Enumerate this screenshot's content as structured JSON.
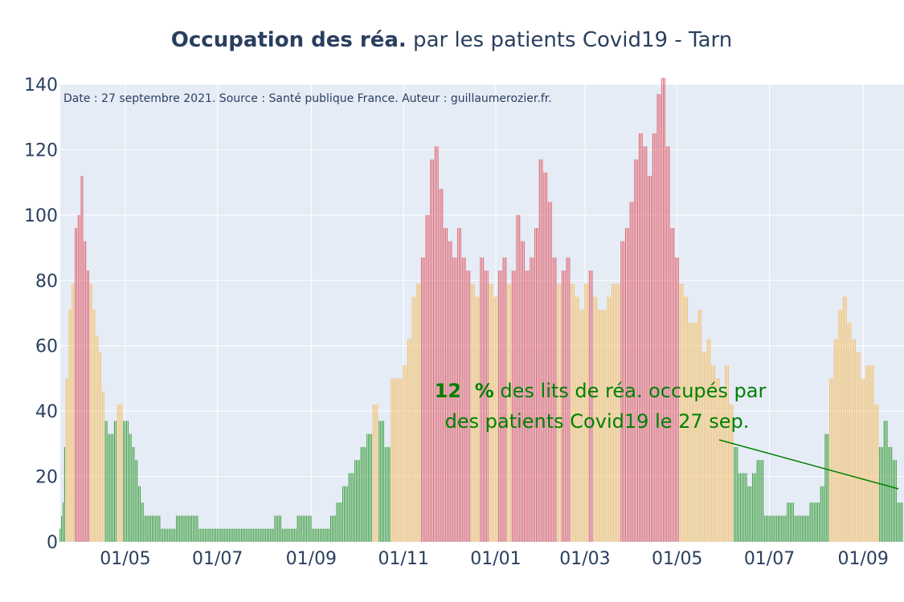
{
  "title": {
    "bold": "Occupation des réa.",
    "rest": " par les patients Covid19 - Tarn"
  },
  "source_note": "Date : 27 septembre 2021. Source : Santé publique France. Auteur : guillaumerozier.fr.",
  "annotation": {
    "percent": "12  %",
    "line1_rest": " des lits de réa. occupés par",
    "line2": "des patients Covid19 le 27 sep."
  },
  "colors": {
    "plot_bg": "#e5ecf6",
    "grid": "#ffffff",
    "text": "#2a3f5f",
    "green": "#3a9d3a",
    "orange": "#f5c16a",
    "red": "#e0606a",
    "annotation": "#008000"
  },
  "chart_data": {
    "type": "bar",
    "title": "Occupation des réa. par les patients Covid19 - Tarn",
    "xlabel": "",
    "ylabel": "",
    "ylim": [
      0,
      140
    ],
    "yticks": [
      "0",
      "20",
      "40",
      "60",
      "80",
      "100",
      "120",
      "140"
    ],
    "xticks": [
      "01/05",
      "01/07",
      "01/09",
      "01/11",
      "01/01",
      "01/03",
      "01/05",
      "01/07",
      "01/09"
    ],
    "xrange": [
      "2020-03-19",
      "2021-09-28"
    ],
    "xtick_dates": [
      "2020-05-01",
      "2020-07-01",
      "2020-09-01",
      "2020-11-01",
      "2021-01-01",
      "2021-03-01",
      "2021-05-01",
      "2021-07-01",
      "2021-09-01"
    ],
    "grid": true,
    "series": [
      {
        "color_rule": "green below 40, orange 40-80, red above 80",
        "x": [
          "2020-03-19",
          "2020-03-20",
          "2020-03-21",
          "2020-03-22",
          "2020-03-23",
          "2020-03-25",
          "2020-03-27",
          "2020-03-29",
          "2020-03-31",
          "2020-04-02",
          "2020-04-04",
          "2020-04-06",
          "2020-04-08",
          "2020-04-10",
          "2020-04-12",
          "2020-04-14",
          "2020-04-16",
          "2020-04-18",
          "2020-04-20",
          "2020-04-22",
          "2020-04-24",
          "2020-04-26",
          "2020-04-28",
          "2020-04-30",
          "2020-05-02",
          "2020-05-04",
          "2020-05-06",
          "2020-05-08",
          "2020-05-10",
          "2020-05-12",
          "2020-05-14",
          "2020-05-16",
          "2020-05-18",
          "2020-05-20",
          "2020-05-25",
          "2020-05-30",
          "2020-06-04",
          "2020-06-09",
          "2020-06-14",
          "2020-06-19",
          "2020-06-24",
          "2020-06-29",
          "2020-07-04",
          "2020-07-09",
          "2020-07-14",
          "2020-07-19",
          "2020-07-24",
          "2020-07-29",
          "2020-08-03",
          "2020-08-08",
          "2020-08-13",
          "2020-08-18",
          "2020-08-23",
          "2020-08-28",
          "2020-09-02",
          "2020-09-06",
          "2020-09-10",
          "2020-09-14",
          "2020-09-18",
          "2020-09-22",
          "2020-09-26",
          "2020-09-30",
          "2020-10-04",
          "2020-10-08",
          "2020-10-12",
          "2020-10-16",
          "2020-10-20",
          "2020-10-24",
          "2020-10-28",
          "2020-11-01",
          "2020-11-04",
          "2020-11-07",
          "2020-11-10",
          "2020-11-13",
          "2020-11-16",
          "2020-11-19",
          "2020-11-22",
          "2020-11-25",
          "2020-11-28",
          "2020-12-01",
          "2020-12-04",
          "2020-12-07",
          "2020-12-10",
          "2020-12-13",
          "2020-12-16",
          "2020-12-19",
          "2020-12-22",
          "2020-12-25",
          "2020-12-28",
          "2020-12-31",
          "2021-01-03",
          "2021-01-06",
          "2021-01-09",
          "2021-01-12",
          "2021-01-15",
          "2021-01-18",
          "2021-01-21",
          "2021-01-24",
          "2021-01-27",
          "2021-01-30",
          "2021-02-02",
          "2021-02-05",
          "2021-02-08",
          "2021-02-11",
          "2021-02-14",
          "2021-02-17",
          "2021-02-20",
          "2021-02-23",
          "2021-02-26",
          "2021-03-01",
          "2021-03-04",
          "2021-03-07",
          "2021-03-10",
          "2021-03-13",
          "2021-03-16",
          "2021-03-19",
          "2021-03-22",
          "2021-03-25",
          "2021-03-28",
          "2021-03-31",
          "2021-04-03",
          "2021-04-06",
          "2021-04-09",
          "2021-04-12",
          "2021-04-15",
          "2021-04-18",
          "2021-04-21",
          "2021-04-24",
          "2021-04-27",
          "2021-04-30",
          "2021-05-03",
          "2021-05-06",
          "2021-05-09",
          "2021-05-12",
          "2021-05-15",
          "2021-05-18",
          "2021-05-21",
          "2021-05-24",
          "2021-05-27",
          "2021-05-30",
          "2021-06-02",
          "2021-06-05",
          "2021-06-08",
          "2021-06-11",
          "2021-06-14",
          "2021-06-17",
          "2021-06-20",
          "2021-06-23",
          "2021-06-28",
          "2021-07-03",
          "2021-07-08",
          "2021-07-13",
          "2021-07-18",
          "2021-07-23",
          "2021-07-28",
          "2021-08-01",
          "2021-08-04",
          "2021-08-07",
          "2021-08-10",
          "2021-08-13",
          "2021-08-16",
          "2021-08-19",
          "2021-08-22",
          "2021-08-25",
          "2021-08-28",
          "2021-08-31",
          "2021-09-03",
          "2021-09-06",
          "2021-09-09",
          "2021-09-12",
          "2021-09-15",
          "2021-09-18",
          "2021-09-21",
          "2021-09-24",
          "2021-09-27"
        ],
        "values": [
          4,
          8,
          12,
          29,
          50,
          71,
          79,
          96,
          100,
          112,
          92,
          83,
          79,
          71,
          63,
          58,
          46,
          37,
          33,
          33,
          37,
          42,
          42,
          37,
          37,
          33,
          29,
          25,
          17,
          12,
          8,
          8,
          8,
          8,
          4,
          4,
          8,
          8,
          8,
          4,
          4,
          4,
          4,
          4,
          4,
          4,
          4,
          4,
          4,
          8,
          4,
          4,
          8,
          8,
          4,
          4,
          4,
          8,
          12,
          17,
          21,
          25,
          29,
          33,
          42,
          37,
          29,
          50,
          50,
          54,
          62,
          75,
          79,
          87,
          100,
          117,
          121,
          108,
          96,
          92,
          87,
          96,
          87,
          83,
          79,
          75,
          87,
          83,
          79,
          75,
          83,
          87,
          79,
          83,
          100,
          92,
          83,
          87,
          96,
          117,
          113,
          104,
          87,
          79,
          83,
          87,
          79,
          75,
          71,
          79,
          83,
          75,
          71,
          71,
          75,
          79,
          79,
          92,
          96,
          104,
          117,
          125,
          121,
          112,
          125,
          137,
          142,
          121,
          96,
          87,
          79,
          75,
          67,
          67,
          71,
          58,
          62,
          54,
          50,
          46,
          54,
          42,
          29,
          21,
          21,
          17,
          21,
          25,
          8,
          8,
          8,
          12,
          8,
          8,
          12,
          12,
          17,
          33,
          50,
          62,
          71,
          75,
          67,
          62,
          58,
          50,
          54,
          54,
          42,
          29,
          37,
          29,
          25,
          12,
          12
        ]
      }
    ]
  }
}
